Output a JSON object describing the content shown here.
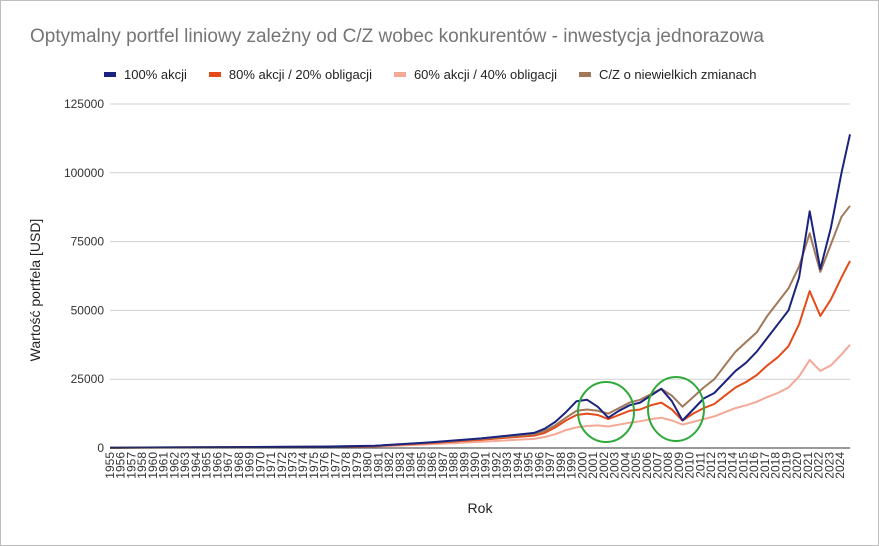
{
  "chart_data": {
    "type": "line",
    "title": "Optymalny portfel liniowy zależny od C/Z wobec konkurentów - inwestycja jednorazowa",
    "xlabel": "Rok",
    "ylabel": "Wartość portfela [USD]",
    "ylim": [
      0,
      125000
    ],
    "yticks": [
      "0",
      "25000",
      "50000",
      "75000",
      "100000",
      "125000"
    ],
    "ytick_values": [
      0,
      25000,
      50000,
      75000,
      100000,
      125000
    ],
    "xticks": [
      "1955",
      "1956",
      "1957",
      "1958",
      "1960",
      "1961",
      "1962",
      "1963",
      "1964",
      "1965",
      "1966",
      "1967",
      "1968",
      "1969",
      "1970",
      "1971",
      "1972",
      "1973",
      "1974",
      "1975",
      "1976",
      "1977",
      "1978",
      "1979",
      "1980",
      "1981",
      "1982",
      "1983",
      "1984",
      "1985",
      "1986",
      "1987",
      "1988",
      "1989",
      "1990",
      "1991",
      "1992",
      "1993",
      "1994",
      "1995",
      "1996",
      "1997",
      "1998",
      "1999",
      "2000",
      "2001",
      "2002",
      "2003",
      "2004",
      "2005",
      "2006",
      "2007",
      "2008",
      "2009",
      "2010",
      "2011",
      "2012",
      "2013",
      "2014",
      "2015",
      "2016",
      "2017",
      "2018",
      "2019",
      "2020",
      "2021",
      "2022",
      "2023",
      "2024"
    ],
    "grid": true,
    "legend_position": "top",
    "x": [
      1955,
      1960,
      1965,
      1970,
      1975,
      1980,
      1985,
      1990,
      1995,
      1996,
      1997,
      1998,
      1999,
      2000,
      2001,
      2002,
      2003,
      2004,
      2005,
      2006,
      2007,
      2008,
      2009,
      2010,
      2011,
      2012,
      2013,
      2014,
      2015,
      2016,
      2017,
      2018,
      2019,
      2020,
      2021,
      2022,
      2023,
      2024,
      2024.8
    ],
    "series": [
      {
        "name": "100% akcji",
        "color": "#1a237e",
        "values": [
          100,
          200,
          300,
          400,
          500,
          800,
          2000,
          3500,
          5500,
          7000,
          9500,
          13000,
          17000,
          17500,
          15000,
          11000,
          13500,
          15500,
          16500,
          19000,
          21500,
          17000,
          10000,
          14000,
          18000,
          20000,
          24000,
          28000,
          31000,
          35000,
          40000,
          45000,
          50000,
          62000,
          86000,
          65000,
          80000,
          100000,
          114000
        ]
      },
      {
        "name": "80% akcji / 20% obligacji",
        "color": "#e64a19",
        "values": [
          100,
          180,
          260,
          350,
          450,
          700,
          1700,
          3000,
          4500,
          5500,
          7500,
          10000,
          12000,
          12500,
          12000,
          10500,
          12000,
          13500,
          14000,
          15500,
          16500,
          14000,
          10000,
          12500,
          14500,
          16000,
          19000,
          22000,
          24000,
          26500,
          30000,
          33000,
          37000,
          45000,
          57000,
          48000,
          54000,
          62000,
          68000
        ]
      },
      {
        "name": "60% akcji / 40% obligacji",
        "color": "#f4a896",
        "values": [
          100,
          160,
          230,
          310,
          380,
          550,
          1300,
          2300,
          3300,
          4000,
          5000,
          6500,
          7500,
          8000,
          8200,
          7800,
          8500,
          9200,
          9700,
          10500,
          11000,
          10000,
          8500,
          9500,
          10500,
          11500,
          13000,
          14500,
          15500,
          16800,
          18500,
          20000,
          22000,
          26000,
          32000,
          28000,
          30000,
          34000,
          37500
        ]
      },
      {
        "name": "C/Z o niewielkich zmianach",
        "color": "#a1785a",
        "values": [
          100,
          190,
          280,
          380,
          480,
          780,
          1900,
          3300,
          5000,
          6200,
          8300,
          11000,
          13500,
          14000,
          13500,
          12500,
          14500,
          16500,
          17500,
          19500,
          21500,
          19000,
          15000,
          18500,
          22000,
          25000,
          30000,
          35000,
          38500,
          42000,
          48000,
          53000,
          58000,
          66000,
          78000,
          64000,
          74000,
          84000,
          88000
        ]
      }
    ]
  }
}
